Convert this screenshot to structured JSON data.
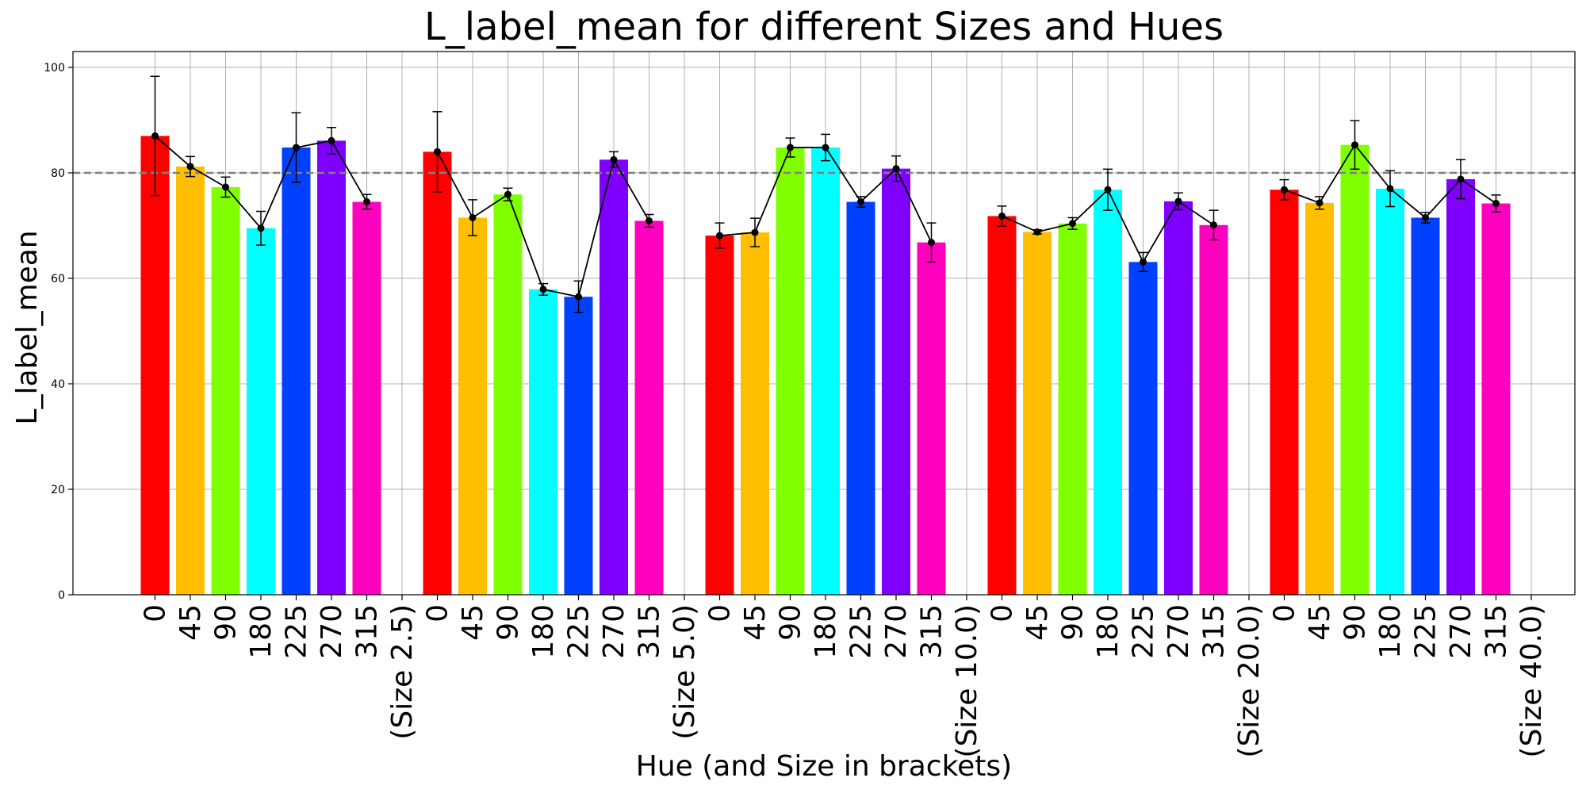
{
  "chart_data": {
    "type": "bar",
    "title": "L_label_mean for different Sizes and Hues",
    "xlabel": "Hue (and Size in brackets)",
    "ylabel": "L_label_mean",
    "ylim": [
      0,
      103
    ],
    "yticks": [
      0,
      20,
      40,
      60,
      80,
      100
    ],
    "grid": true,
    "reference_line": {
      "y": 80,
      "style": "dashed",
      "color": "#808080"
    },
    "hue_colors": {
      "0": "#ff0000",
      "45": "#ffbf00",
      "90": "#80ff00",
      "180": "#00ffff",
      "225": "#0040ff",
      "270": "#8000ff",
      "315": "#ff00bf"
    },
    "groups": [
      {
        "size_label": "(Size 2.5)",
        "hues": [
          "0",
          "45",
          "90",
          "180",
          "225",
          "270",
          "315"
        ],
        "values": [
          87.0,
          81.2,
          77.3,
          69.5,
          84.8,
          86.1,
          74.5
        ],
        "errors": [
          11.3,
          1.9,
          1.9,
          3.2,
          6.6,
          2.5,
          1.4
        ]
      },
      {
        "size_label": "(Size 5.0)",
        "hues": [
          "0",
          "45",
          "90",
          "180",
          "225",
          "270",
          "315"
        ],
        "values": [
          84.0,
          71.5,
          75.9,
          57.9,
          56.5,
          82.5,
          70.9
        ],
        "errors": [
          7.6,
          3.4,
          1.2,
          1.1,
          3.0,
          1.5,
          1.2
        ]
      },
      {
        "size_label": "(Size 10.0)",
        "hues": [
          "0",
          "45",
          "90",
          "180",
          "225",
          "270",
          "315"
        ],
        "values": [
          68.1,
          68.7,
          84.8,
          84.8,
          74.5,
          80.8,
          66.8
        ],
        "errors": [
          2.4,
          2.7,
          1.8,
          2.5,
          1.0,
          2.4,
          3.7
        ]
      },
      {
        "size_label": "(Size 20.0)",
        "hues": [
          "0",
          "45",
          "90",
          "180",
          "225",
          "270",
          "315"
        ],
        "values": [
          71.8,
          68.8,
          70.4,
          76.8,
          63.1,
          74.6,
          70.1
        ],
        "errors": [
          1.9,
          0.4,
          1.1,
          3.9,
          1.8,
          1.6,
          2.8
        ]
      },
      {
        "size_label": "(Size 40.0)",
        "hues": [
          "0",
          "45",
          "90",
          "180",
          "225",
          "270",
          "315"
        ],
        "values": [
          76.8,
          74.3,
          85.3,
          77.0,
          71.5,
          78.8,
          74.2
        ],
        "errors": [
          1.9,
          1.2,
          4.6,
          3.4,
          1.0,
          3.7,
          1.6
        ]
      }
    ]
  }
}
